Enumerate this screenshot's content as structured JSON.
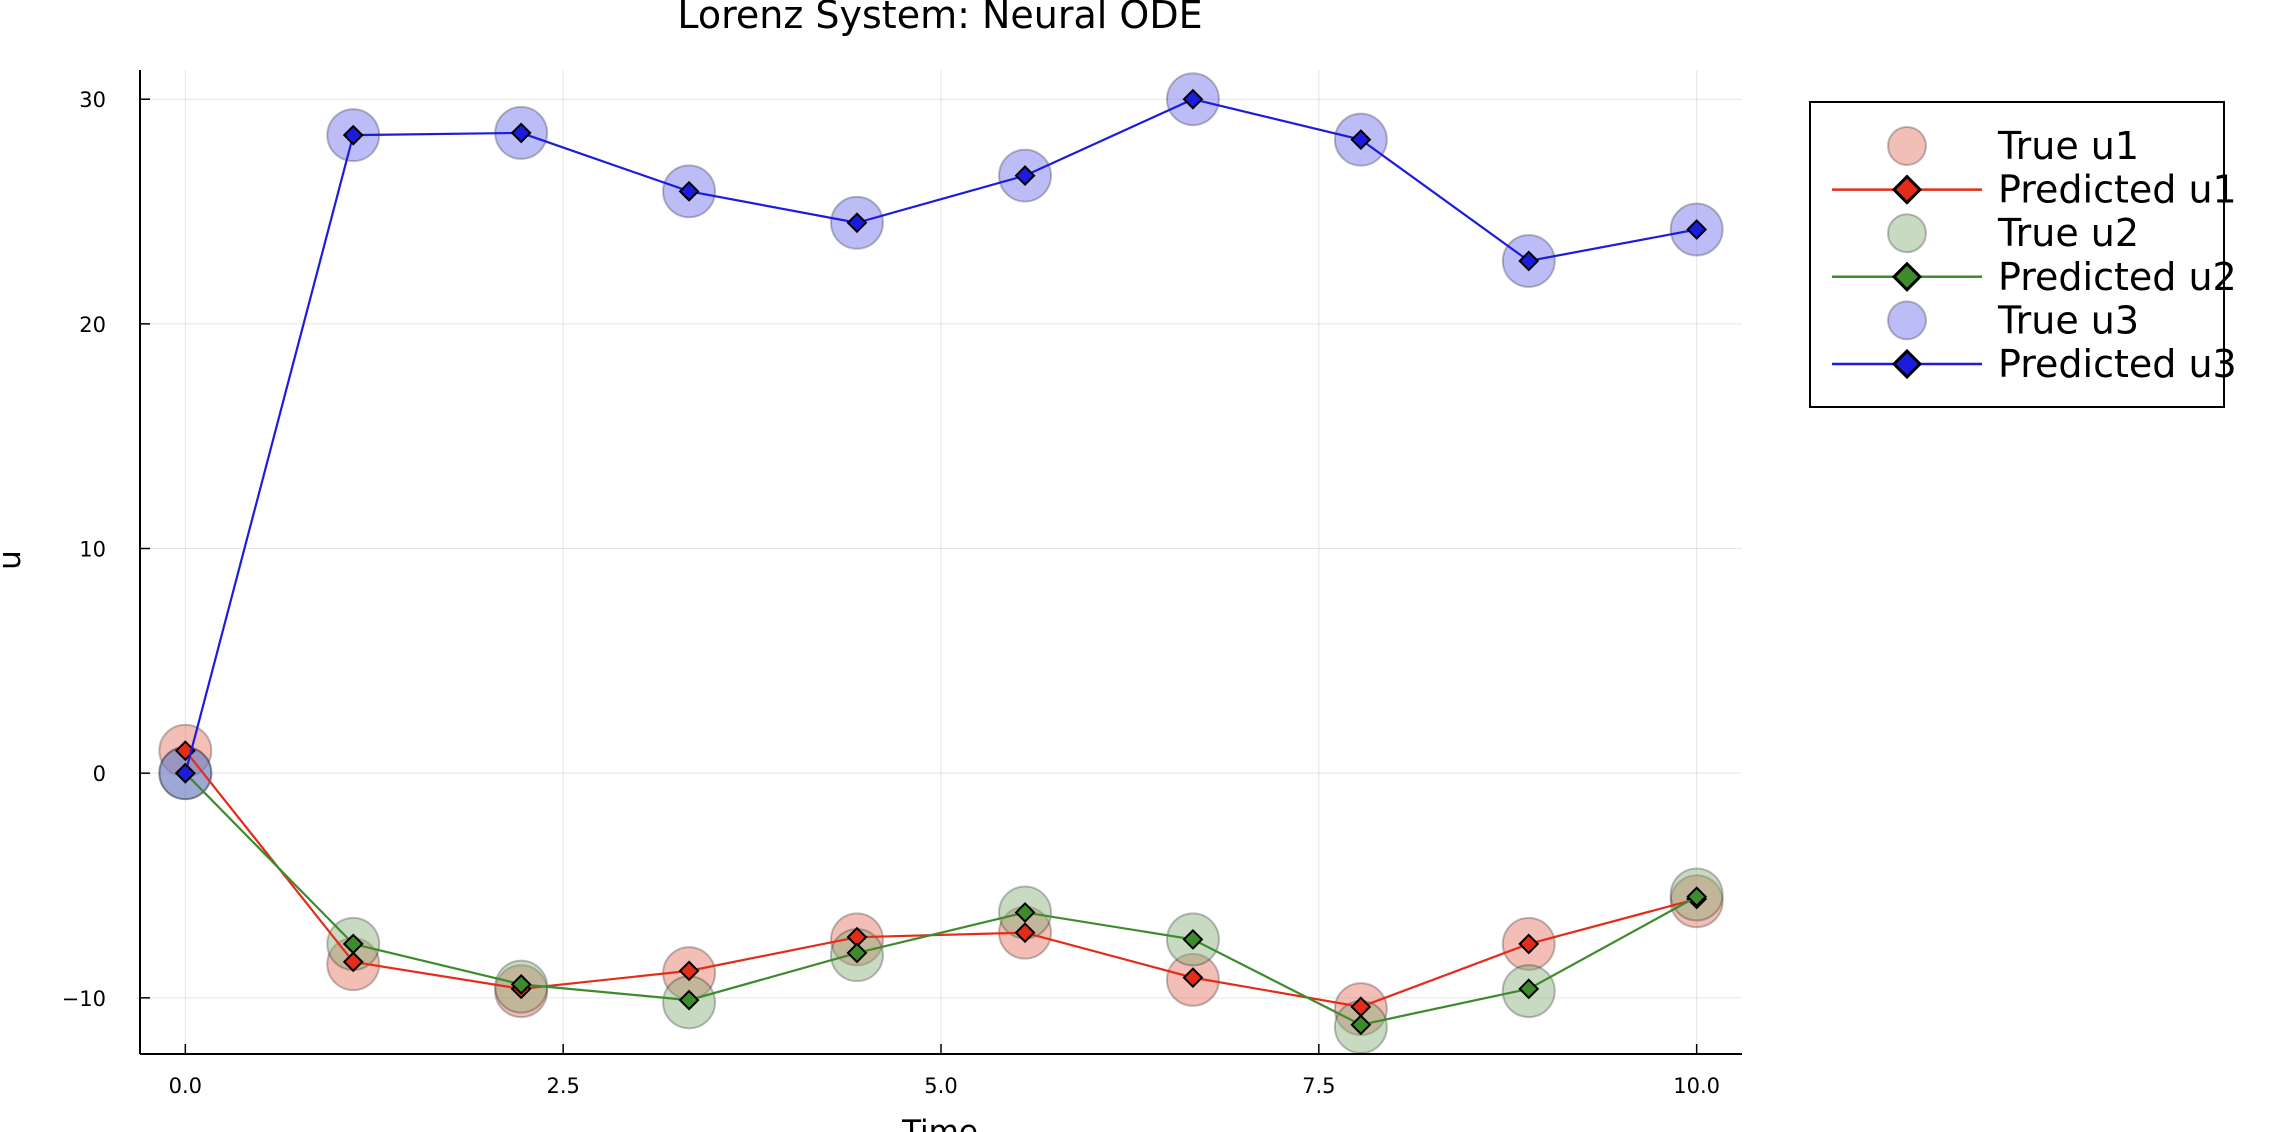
{
  "chart_data": {
    "type": "line",
    "title": "Lorenz System: Neural ODE",
    "xlabel": "Time",
    "ylabel": "u",
    "xlim": [
      -0.3,
      10.3
    ],
    "ylim": [
      -12.5,
      31.3
    ],
    "xticks": [
      0,
      2.5,
      5,
      7.5,
      10
    ],
    "xtick_labels": [
      "0.0",
      "2.5",
      "5.0",
      "7.5",
      "10.0"
    ],
    "yticks": [
      -10,
      0,
      10,
      20,
      30
    ],
    "ytick_labels": [
      "−10",
      "0",
      "10",
      "20",
      "30"
    ],
    "grid": true,
    "legend_position": "outer-top-right",
    "x": [
      0,
      1.111,
      2.222,
      3.333,
      4.444,
      5.556,
      6.667,
      7.778,
      8.889,
      10.0
    ],
    "series": [
      {
        "name": "True u1",
        "kind": "scatter",
        "color": "#e26f5c",
        "values": [
          1.0,
          -8.5,
          -9.7,
          -8.9,
          -7.4,
          -7.1,
          -9.2,
          -10.5,
          -7.6,
          -5.7
        ]
      },
      {
        "name": "Predicted u1",
        "kind": "line",
        "color": "#e32d1a",
        "values": [
          1.0,
          -8.4,
          -9.6,
          -8.8,
          -7.3,
          -7.1,
          -9.1,
          -10.4,
          -7.6,
          -5.6
        ]
      },
      {
        "name": "True u2",
        "kind": "scatter",
        "color": "#85ac78",
        "values": [
          0.0,
          -7.6,
          -9.5,
          -10.2,
          -8.1,
          -6.2,
          -7.4,
          -11.3,
          -9.7,
          -5.4
        ]
      },
      {
        "name": "Predicted u2",
        "kind": "line",
        "color": "#3d8b2d",
        "values": [
          0.0,
          -7.6,
          -9.4,
          -10.1,
          -8.0,
          -6.2,
          -7.4,
          -11.2,
          -9.6,
          -5.5
        ]
      },
      {
        "name": "True u3",
        "kind": "scatter",
        "color": "#6b6bee",
        "values": [
          0.0,
          28.4,
          28.5,
          25.9,
          24.5,
          26.6,
          30.0,
          28.2,
          22.8,
          24.2
        ]
      },
      {
        "name": "Predicted u3",
        "kind": "line",
        "color": "#1c1cdd",
        "values": [
          0.0,
          28.4,
          28.5,
          25.9,
          24.5,
          26.6,
          30.0,
          28.2,
          22.8,
          24.2
        ]
      }
    ]
  }
}
